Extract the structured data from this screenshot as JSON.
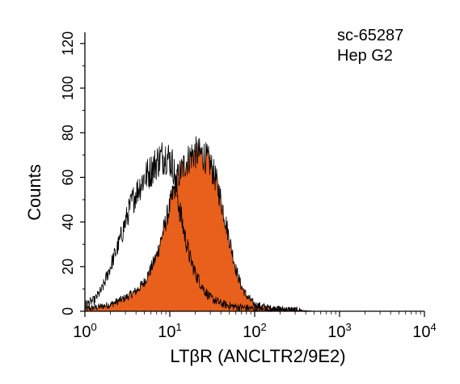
{
  "chart_data": {
    "type": "area",
    "title": "",
    "xlabel": "LTβR (ANCLTR2/9E2)",
    "ylabel": "Counts",
    "x_scale": "log",
    "xlim": [
      1,
      10000
    ],
    "ylim": [
      0,
      125
    ],
    "x_ticks": [
      {
        "value": 1,
        "base": "10",
        "exp": "0"
      },
      {
        "value": 10,
        "base": "10",
        "exp": "1"
      },
      {
        "value": 100,
        "base": "10",
        "exp": "2"
      },
      {
        "value": 1000,
        "base": "10",
        "exp": "3"
      },
      {
        "value": 10000,
        "base": "10",
        "exp": "4"
      }
    ],
    "y_ticks": [
      "0",
      "20",
      "40",
      "60",
      "80",
      "100",
      "120"
    ],
    "annotations": [
      "sc-65287",
      "Hep G2"
    ],
    "grid": false,
    "colors": {
      "filled": "#e8601c",
      "outline": "#000000",
      "axis": "#000000"
    },
    "series": [
      {
        "style": "outline",
        "x": [
          1,
          1.3,
          1.6,
          2,
          2.5,
          3,
          3.5,
          4,
          5,
          6,
          7,
          8,
          9,
          10,
          11,
          12,
          13,
          15,
          17,
          20,
          25,
          30,
          40,
          50,
          60,
          80,
          100,
          150,
          200,
          300,
          500
        ],
        "y": [
          3,
          5,
          10,
          20,
          30,
          40,
          48,
          53,
          60,
          63,
          67,
          69,
          70,
          68,
          65,
          55,
          46,
          34,
          25,
          17,
          10,
          6,
          3.5,
          2.5,
          2,
          1.5,
          1,
          0.8,
          0.5,
          0.3,
          0
        ]
      },
      {
        "style": "filled",
        "x": [
          1,
          1.5,
          2,
          3,
          4,
          5,
          6,
          7,
          8,
          10,
          12,
          15,
          18,
          20,
          25,
          30,
          35,
          40,
          50,
          60,
          70,
          80,
          100,
          150,
          200,
          300,
          500
        ],
        "y": [
          1,
          2,
          3,
          6,
          9,
          13,
          19,
          25,
          33,
          47,
          59,
          66,
          70,
          71,
          70,
          66,
          59,
          50,
          33,
          19,
          11,
          7,
          3,
          1.5,
          1,
          0.5,
          0
        ]
      }
    ]
  }
}
